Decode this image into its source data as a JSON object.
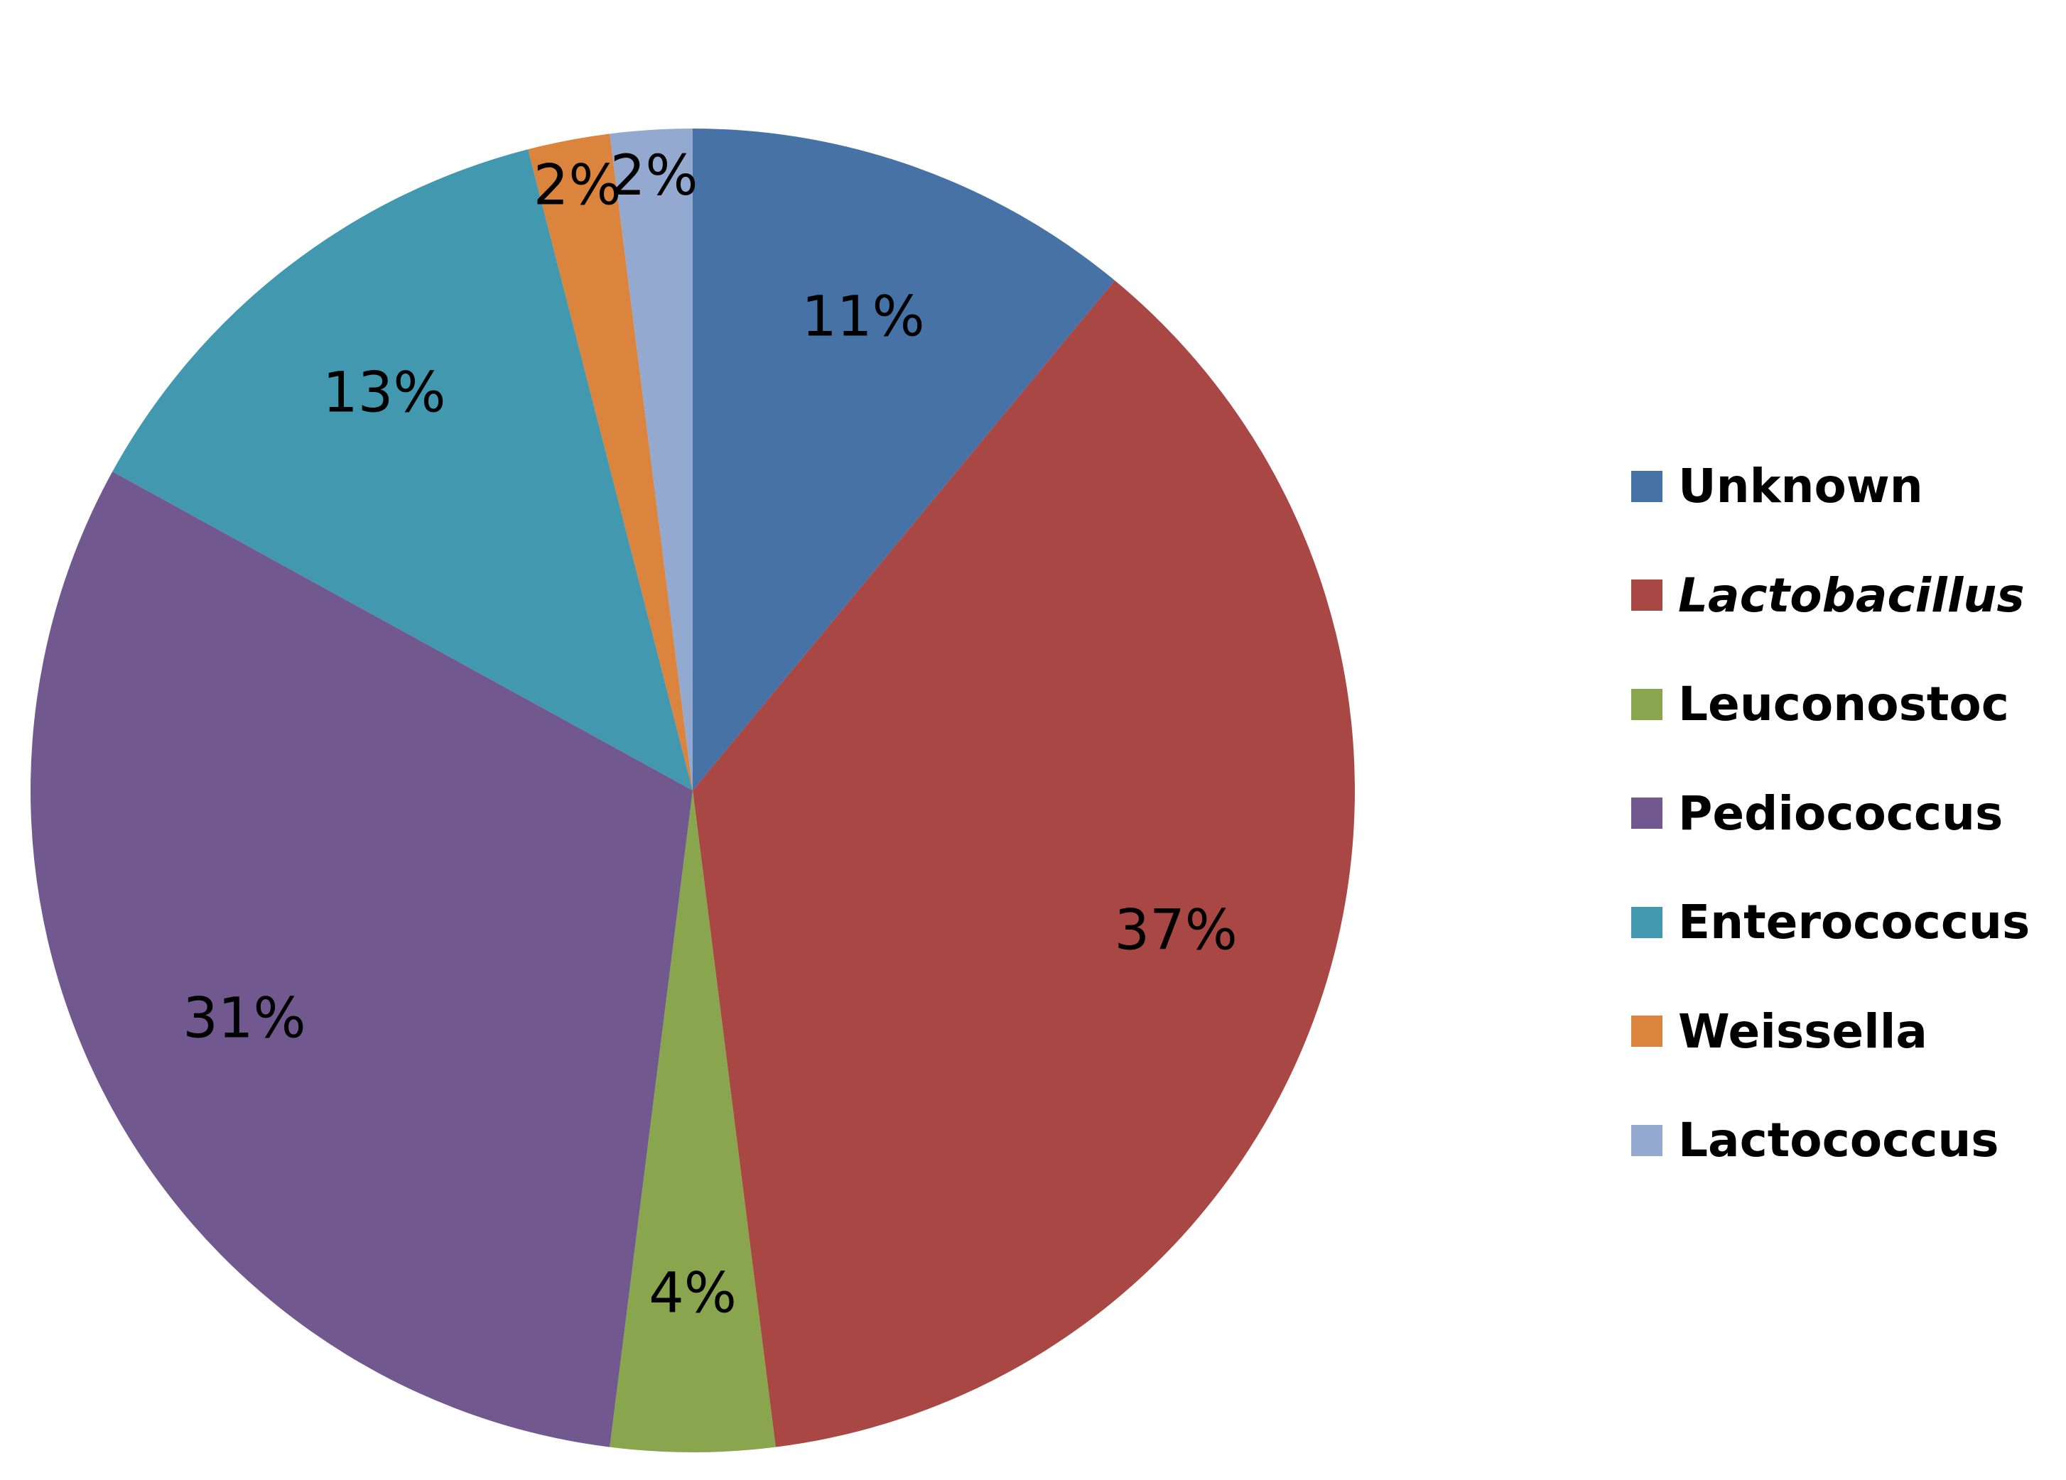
{
  "chart_data": {
    "type": "pie",
    "title": "",
    "categories": [
      "Unknown",
      "Lactobacillus",
      "Leuconostoc",
      "Pediococcus",
      "Enterococcus",
      "Weissella",
      "Lactococcus"
    ],
    "values": [
      11,
      37,
      4,
      31,
      13,
      2,
      2
    ],
    "data_labels": [
      "11%",
      "37%",
      "4%",
      "31%",
      "13%",
      "2%",
      "2%"
    ],
    "colors": [
      "#4672a6",
      "#a94745",
      "#89a54e",
      "#71588f",
      "#4298af",
      "#db843d",
      "#93a9cf"
    ],
    "italic_categories": [
      "Lactobacillus"
    ],
    "start_angle_deg": 0,
    "direction": "clockwise",
    "legend_position": "right"
  }
}
